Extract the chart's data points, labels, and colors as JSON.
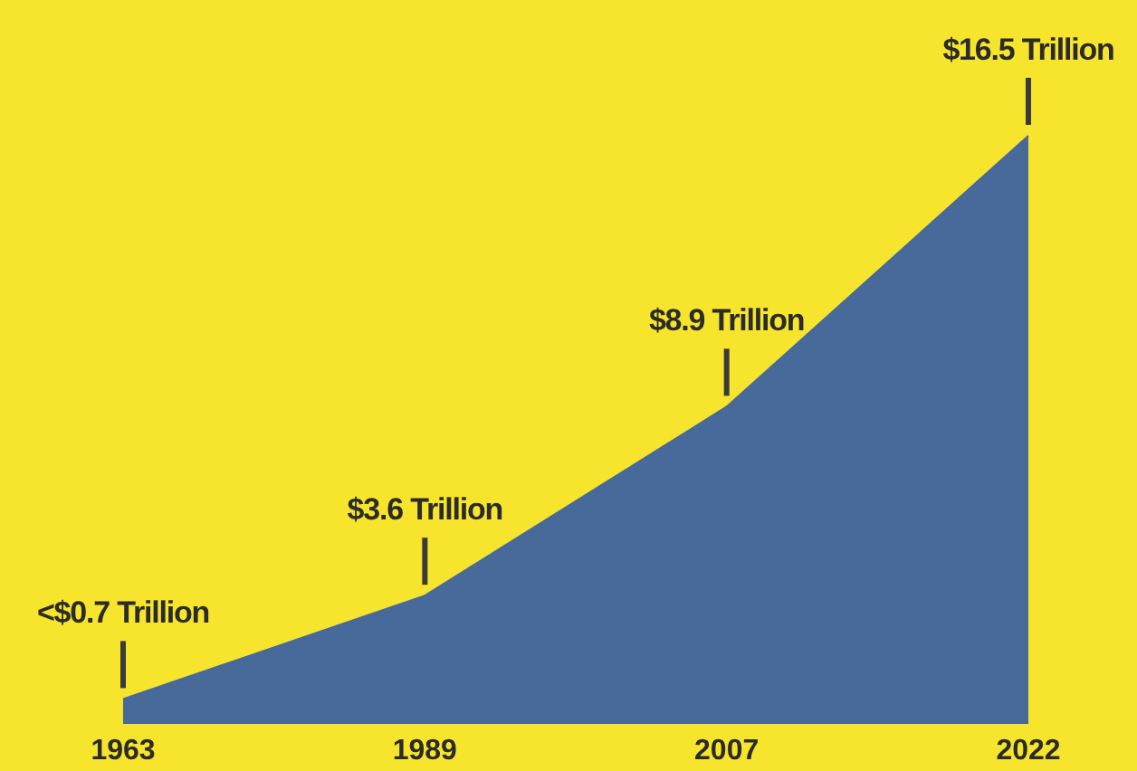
{
  "chart_data": {
    "type": "area",
    "categories": [
      "1963",
      "1989",
      "2007",
      "2022"
    ],
    "series": [
      {
        "color": "#476a9a",
        "values": [
          0.7,
          3.6,
          8.9,
          16.5
        ],
        "value_labels": [
          "<$0.7 Trillion",
          "$3.6 Trillion",
          "$8.9 Trillion",
          "$16.5 Trillion"
        ]
      }
    ],
    "grid": false,
    "legend": false
  }
}
